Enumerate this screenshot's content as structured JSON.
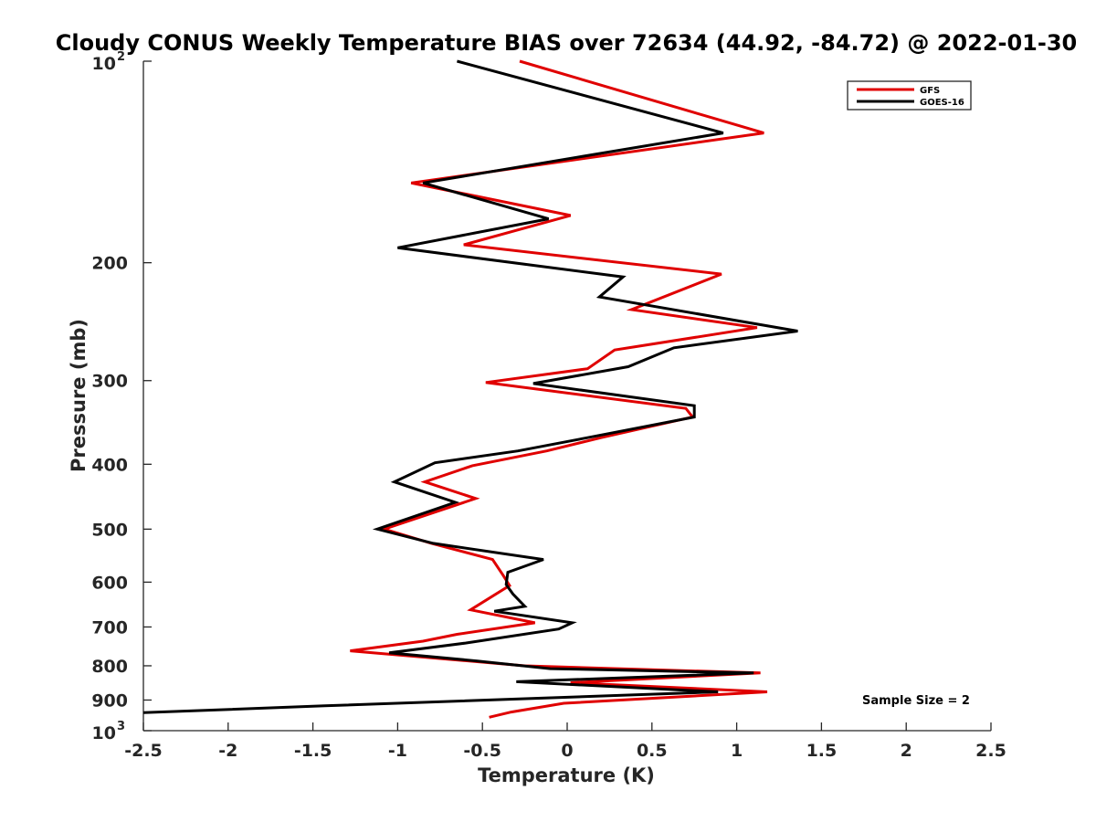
{
  "chart_data": {
    "type": "line",
    "title": "Cloudy CONUS Weekly Temperature BIAS over 72634 (44.92, -84.72) @ 2022-01-30",
    "xlabel": "Temperature (K)",
    "ylabel": "Pressure (mb)",
    "xlim": [
      -2.5,
      2.5
    ],
    "ylim": [
      100,
      1000
    ],
    "y_scale": "log",
    "y_reversed": true,
    "x_ticks": [
      "-2.5",
      "-2",
      "-1.5",
      "-1",
      "-0.5",
      "0",
      "0.5",
      "1",
      "1.5",
      "2",
      "2.5"
    ],
    "x_tick_values": [
      -2.5,
      -2,
      -1.5,
      -1,
      -0.5,
      0,
      0.5,
      1,
      1.5,
      2,
      2.5
    ],
    "y_ticks": [
      {
        "value": 100,
        "base": "10",
        "exp": "2"
      },
      {
        "value": 200,
        "label": "200"
      },
      {
        "value": 300,
        "label": "300"
      },
      {
        "value": 400,
        "label": "400"
      },
      {
        "value": 500,
        "label": "500"
      },
      {
        "value": 600,
        "label": "600"
      },
      {
        "value": 700,
        "label": "700"
      },
      {
        "value": 800,
        "label": "800"
      },
      {
        "value": 900,
        "label": "900"
      },
      {
        "value": 1000,
        "base": "10",
        "exp": "3"
      }
    ],
    "legend": {
      "position": "top-right"
    },
    "grid": false,
    "annotation": "Sample Size = 2",
    "series": [
      {
        "name": "GFS",
        "color": "#e00000",
        "x": [
          -0.28,
          1.16,
          -0.92,
          0.02,
          -0.61,
          0.91,
          0.38,
          1.12,
          0.28,
          0.12,
          -0.48,
          0.7,
          0.74,
          0.2,
          -0.12,
          -0.56,
          -0.84,
          -0.54,
          -1.08,
          -0.8,
          -0.44,
          -0.38,
          -0.34,
          -0.57,
          -0.19,
          -0.65,
          -0.85,
          -1.28,
          -0.25,
          1.14,
          0.02,
          1.18,
          -0.02,
          -0.33,
          -0.46
        ],
        "y": [
          100,
          128,
          152,
          170,
          188,
          208,
          235,
          250,
          270,
          288,
          302,
          330,
          340,
          365,
          382,
          402,
          425,
          450,
          500,
          525,
          555,
          585,
          607,
          660,
          690,
          718,
          735,
          760,
          800,
          820,
          848,
          875,
          910,
          938,
          955
        ]
      },
      {
        "name": "GOES-16",
        "color": "#000000",
        "x": [
          -0.65,
          0.92,
          -0.85,
          -0.11,
          -1.0,
          0.33,
          0.19,
          1.36,
          0.63,
          0.36,
          -0.2,
          0.75,
          0.75,
          0.12,
          -0.29,
          -0.78,
          -1.02,
          -0.66,
          -1.12,
          -0.79,
          -0.14,
          -0.35,
          -0.36,
          -0.32,
          -0.25,
          -0.43,
          0.03,
          -0.05,
          -0.6,
          -1.05,
          -0.53,
          -0.1,
          1.1,
          -0.3,
          0.89,
          -1.43,
          -2.5
        ],
        "y": [
          100,
          128,
          152,
          172,
          190,
          210,
          225,
          253,
          268,
          286,
          303,
          327,
          340,
          365,
          382,
          398,
          425,
          456,
          500,
          525,
          555,
          580,
          605,
          625,
          652,
          663,
          690,
          705,
          740,
          765,
          787,
          808,
          820,
          845,
          875,
          918,
          940
        ]
      }
    ]
  }
}
